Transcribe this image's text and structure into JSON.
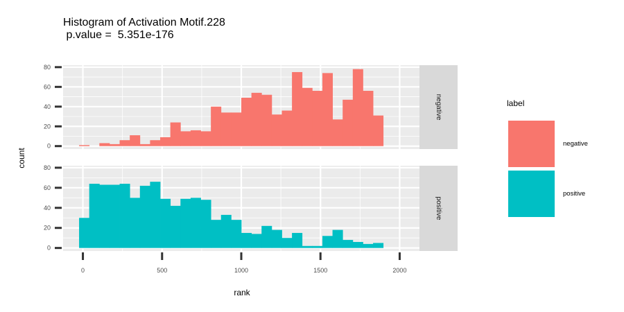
{
  "chart_data": {
    "type": "histogram",
    "title": "Histogram of Activation Motif.228",
    "subtitle": " p.value =  5.351e-176",
    "xlabel": "rank",
    "ylabel": "count",
    "xlim": [
      -125,
      2125
    ],
    "ylim": [
      -3,
      82
    ],
    "x_ticks": [
      0,
      500,
      1000,
      1500,
      2000
    ],
    "y_ticks": [
      0,
      20,
      40,
      60,
      80
    ],
    "bin_width": 64,
    "bin_starts": [
      -24,
      40,
      104,
      168,
      232,
      296,
      360,
      424,
      488,
      552,
      616,
      680,
      744,
      808,
      872,
      936,
      1000,
      1064,
      1128,
      1192,
      1256,
      1320,
      1384,
      1448,
      1512,
      1576,
      1640,
      1704,
      1768,
      1832
    ],
    "legend": {
      "title": "label",
      "position": "right"
    },
    "panels": [
      {
        "name": "negative",
        "color": "#F8766D",
        "values": [
          1,
          0,
          3,
          2,
          6,
          11,
          2,
          6,
          9,
          24,
          15,
          16,
          15,
          40,
          34,
          34,
          49,
          54,
          52,
          32,
          36,
          75,
          59,
          56,
          74,
          27,
          47,
          78,
          56,
          31
        ]
      },
      {
        "name": "positive",
        "color": "#00BFC4",
        "values": [
          30,
          64,
          63,
          63,
          64,
          50,
          62,
          66,
          49,
          42,
          49,
          50,
          48,
          28,
          33,
          28,
          15,
          14,
          22,
          18,
          10,
          15,
          2,
          2,
          12,
          18,
          8,
          6,
          4,
          5
        ]
      }
    ]
  }
}
